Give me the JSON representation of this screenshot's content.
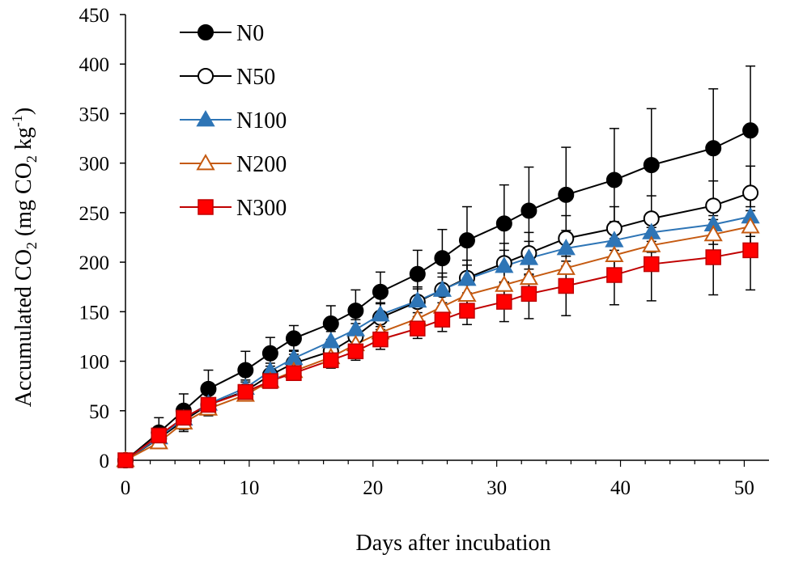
{
  "chart_data": {
    "type": "line",
    "title": "",
    "xlabel": "Days after incubation",
    "ylabel_parts": {
      "a": "Accumulated CO",
      "b": "2",
      "c": " (mg CO",
      "d": "2",
      "e": " kg",
      "f": "-1",
      "g": ")"
    },
    "xlim": [
      0,
      52
    ],
    "ylim": [
      0,
      450
    ],
    "xticks": [
      0,
      10,
      20,
      30,
      40,
      50
    ],
    "yticks": [
      0,
      50,
      100,
      150,
      200,
      250,
      300,
      350,
      400,
      450
    ],
    "x": [
      0,
      2.7,
      4.7,
      6.7,
      9.7,
      11.7,
      13.6,
      16.6,
      18.6,
      20.6,
      23.6,
      25.6,
      27.6,
      30.6,
      32.6,
      35.6,
      39.5,
      42.5,
      47.5,
      50.5
    ],
    "series": [
      {
        "name": "N0",
        "marker": "circle-filled",
        "color": "#000000",
        "fill": "#000000",
        "values": [
          0,
          28,
          50,
          72,
          91,
          108,
          123,
          138,
          151,
          170,
          188,
          204,
          222,
          239,
          252,
          268,
          283,
          298,
          315,
          333
        ],
        "err": [
          0,
          15,
          17,
          19,
          19,
          16,
          13,
          18,
          21,
          20,
          24,
          29,
          34,
          39,
          44,
          48,
          52,
          57,
          60,
          65
        ]
      },
      {
        "name": "N50",
        "marker": "circle-open",
        "color": "#000000",
        "fill": "#ffffff",
        "values": [
          0,
          22,
          40,
          56,
          70,
          86,
          98,
          110,
          125,
          144,
          160,
          172,
          184,
          199,
          209,
          224,
          234,
          244,
          257,
          270
        ],
        "err": [
          0,
          9,
          11,
          11,
          9,
          9,
          9,
          12,
          13,
          14,
          15,
          17,
          18,
          20,
          21,
          23,
          22,
          23,
          25,
          27
        ]
      },
      {
        "name": "N100",
        "marker": "triangle-filled",
        "color": "#2e75b6",
        "fill": "#2e75b6",
        "values": [
          0,
          23,
          42,
          57,
          73,
          90,
          103,
          120,
          132,
          147,
          161,
          172,
          183,
          196,
          204,
          214,
          222,
          230,
          238,
          246
        ],
        "err": [
          0,
          8,
          9,
          9,
          8,
          8,
          8,
          10,
          10,
          12,
          12,
          13,
          14,
          16,
          17,
          18,
          19,
          20,
          20,
          20
        ]
      },
      {
        "name": "N200",
        "marker": "triangle-open",
        "color": "#c55a11",
        "fill": "#ffffff",
        "values": [
          0,
          18,
          38,
          52,
          66,
          80,
          90,
          104,
          117,
          129,
          143,
          155,
          167,
          177,
          184,
          194,
          207,
          217,
          228,
          236
        ],
        "err": [
          0,
          6,
          7,
          7,
          6,
          6,
          6,
          8,
          9,
          10,
          11,
          12,
          13,
          14,
          15,
          16,
          17,
          18,
          19,
          20
        ]
      },
      {
        "name": "N300",
        "marker": "square-filled",
        "color": "#c00000",
        "fill": "#ff0000",
        "values": [
          0,
          25,
          43,
          56,
          69,
          80,
          88,
          101,
          110,
          122,
          133,
          142,
          151,
          160,
          168,
          176,
          187,
          198,
          205,
          212
        ],
        "err": [
          0,
          7,
          7,
          6,
          6,
          6,
          6,
          8,
          9,
          10,
          10,
          12,
          14,
          20,
          25,
          30,
          30,
          37,
          38,
          40
        ]
      }
    ],
    "legend": "top-left"
  }
}
